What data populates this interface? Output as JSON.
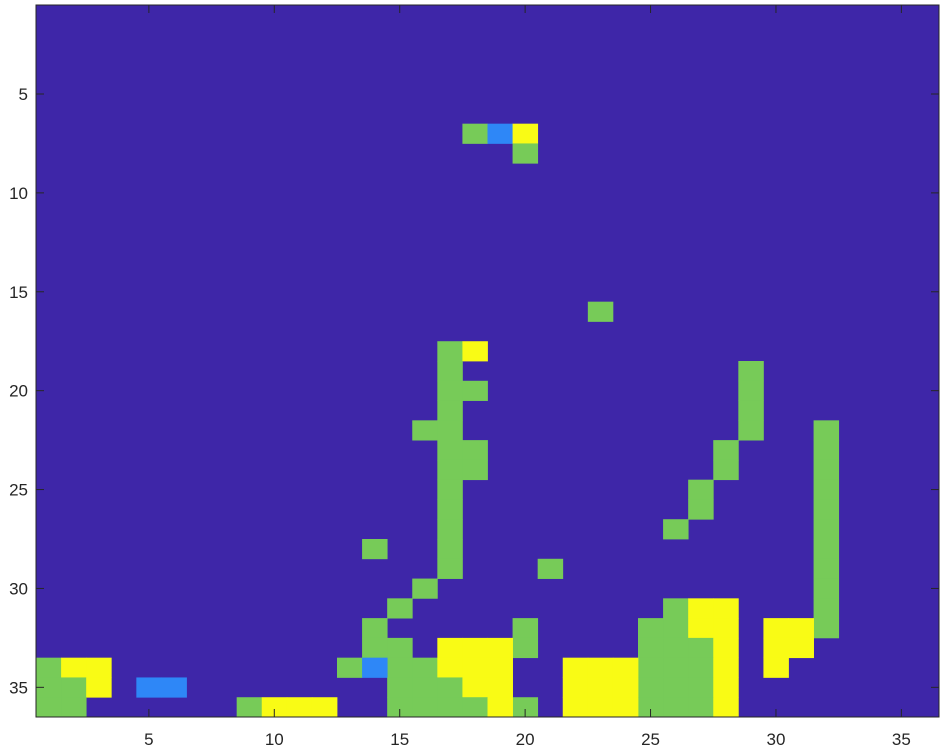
{
  "chart_data": {
    "type": "heatmap",
    "title": "",
    "xlabel": "",
    "ylabel": "",
    "xlim": [
      0.5,
      36.5
    ],
    "ylim": [
      0.5,
      36.5
    ],
    "y_reversed": true,
    "grid": false,
    "legend": "none",
    "x_ticks": [
      5,
      10,
      15,
      20,
      25,
      30,
      35
    ],
    "y_ticks": [
      5,
      10,
      15,
      20,
      25,
      30,
      35
    ],
    "x_tick_labels": [
      "5",
      "10",
      "15",
      "20",
      "25",
      "30",
      "35"
    ],
    "y_tick_labels": [
      "5",
      "10",
      "15",
      "20",
      "25",
      "30",
      "35"
    ],
    "colormap": {
      "0": "#3e26a8",
      "1": "#2e87f7",
      "2": "#77cb58",
      "3": "#f9fb15"
    },
    "background_level": 0,
    "cells": [
      {
        "row": 7,
        "cols": [
          18
        ],
        "level": 2
      },
      {
        "row": 7,
        "cols": [
          19
        ],
        "level": 1
      },
      {
        "row": 7,
        "cols": [
          20
        ],
        "level": 3
      },
      {
        "row": 8,
        "cols": [
          20
        ],
        "level": 2
      },
      {
        "row": 16,
        "cols": [
          23
        ],
        "level": 2
      },
      {
        "row": 18,
        "cols": [
          17
        ],
        "level": 2
      },
      {
        "row": 18,
        "cols": [
          18
        ],
        "level": 3
      },
      {
        "row": 19,
        "cols": [
          17,
          29
        ],
        "level": 2
      },
      {
        "row": 20,
        "cols": [
          17,
          18,
          29
        ],
        "level": 2
      },
      {
        "row": 21,
        "cols": [
          17,
          29
        ],
        "level": 2
      },
      {
        "row": 22,
        "cols": [
          16,
          17,
          29,
          32
        ],
        "level": 2
      },
      {
        "row": 23,
        "cols": [
          17,
          18,
          28,
          32
        ],
        "level": 2
      },
      {
        "row": 24,
        "cols": [
          17,
          18,
          28,
          32
        ],
        "level": 2
      },
      {
        "row": 25,
        "cols": [
          17,
          27,
          32
        ],
        "level": 2
      },
      {
        "row": 26,
        "cols": [
          17,
          27,
          32
        ],
        "level": 2
      },
      {
        "row": 27,
        "cols": [
          17,
          26,
          32
        ],
        "level": 2
      },
      {
        "row": 28,
        "cols": [
          14,
          17,
          32
        ],
        "level": 2
      },
      {
        "row": 29,
        "cols": [
          17,
          21,
          32
        ],
        "level": 2
      },
      {
        "row": 30,
        "cols": [
          16,
          32
        ],
        "level": 2
      },
      {
        "row": 31,
        "cols": [
          15,
          26,
          32
        ],
        "level": 2
      },
      {
        "row": 31,
        "cols": [
          27,
          28
        ],
        "level": 3
      },
      {
        "row": 32,
        "cols": [
          14,
          20,
          25,
          26,
          32
        ],
        "level": 2
      },
      {
        "row": 32,
        "cols": [
          27,
          28,
          30,
          31
        ],
        "level": 3
      },
      {
        "row": 33,
        "cols": [
          14,
          15,
          20,
          25,
          26,
          27
        ],
        "level": 2
      },
      {
        "row": 33,
        "cols": [
          17,
          18,
          19,
          28,
          30,
          31
        ],
        "level": 3
      },
      {
        "row": 34,
        "cols": [
          1,
          13,
          15,
          16,
          25,
          26,
          27
        ],
        "level": 2
      },
      {
        "row": 34,
        "cols": [
          14
        ],
        "level": 1
      },
      {
        "row": 34,
        "cols": [
          2,
          3,
          17,
          18,
          19,
          22,
          23,
          24,
          28,
          30
        ],
        "level": 3
      },
      {
        "row": 35,
        "cols": [
          1,
          2,
          15,
          16,
          17,
          25,
          26,
          27
        ],
        "level": 2
      },
      {
        "row": 35,
        "cols": [
          5,
          6
        ],
        "level": 1
      },
      {
        "row": 35,
        "cols": [
          3,
          18,
          19,
          22,
          23,
          24,
          28
        ],
        "level": 3
      },
      {
        "row": 36,
        "cols": [
          1,
          2,
          9,
          15,
          16,
          17,
          18,
          20,
          25,
          26,
          27
        ],
        "level": 2
      },
      {
        "row": 36,
        "cols": [
          10,
          11,
          12,
          19,
          22,
          23,
          24,
          28
        ],
        "level": 3
      }
    ]
  }
}
